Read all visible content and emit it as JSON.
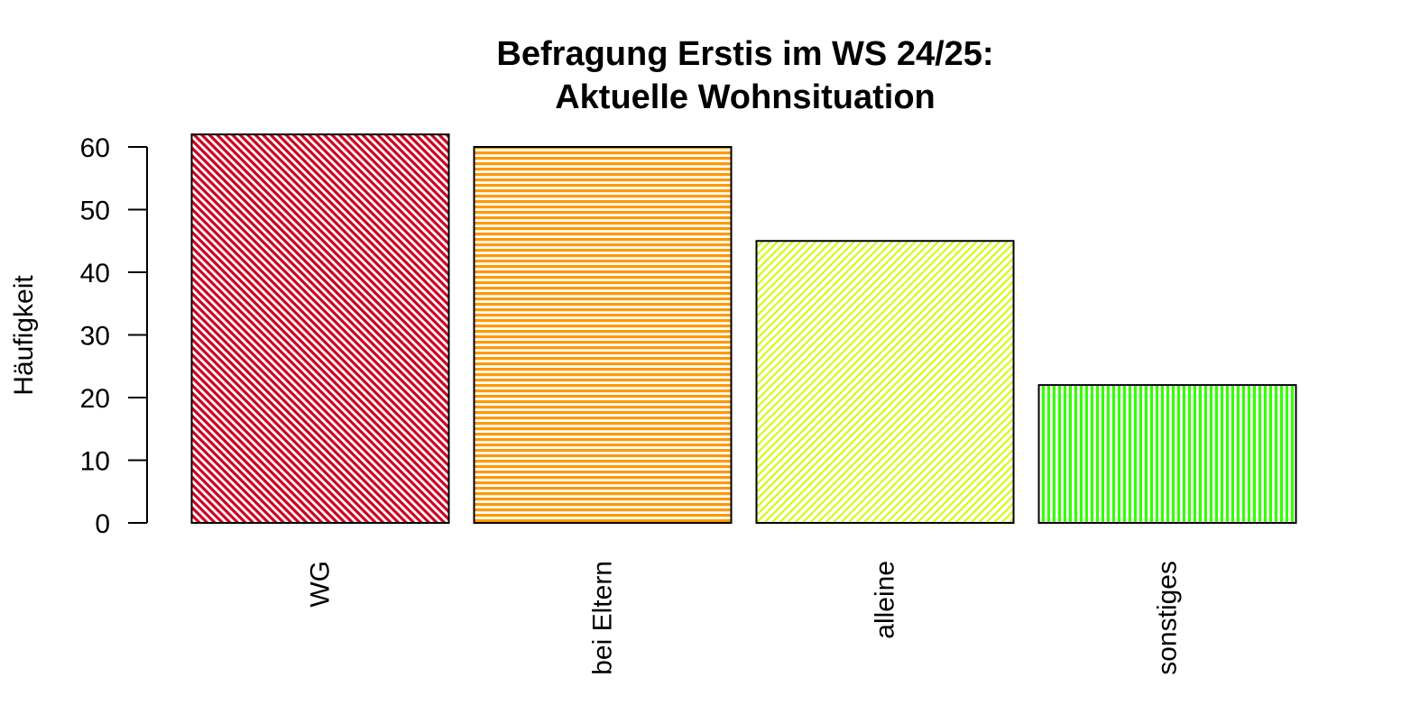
{
  "chart_data": {
    "type": "bar",
    "title": [
      "Befragung Erstis im WS 24/25:",
      "Aktuelle Wohnsituation"
    ],
    "xlabel": "",
    "ylabel": "Häufigkeit",
    "categories": [
      "WG",
      "bei Eltern",
      "alleine",
      "sonstiges"
    ],
    "values": [
      62,
      60,
      45,
      22
    ],
    "ylim": [
      0,
      60
    ],
    "yticks": [
      0,
      10,
      20,
      30,
      40,
      50,
      60
    ],
    "colors": [
      "#CC0022",
      "#FF9900",
      "#CCFF00",
      "#33FF00"
    ],
    "patterns": [
      "diagonal-left",
      "horizontal",
      "diagonal-right",
      "vertical"
    ],
    "grid": false,
    "legend": "none"
  }
}
